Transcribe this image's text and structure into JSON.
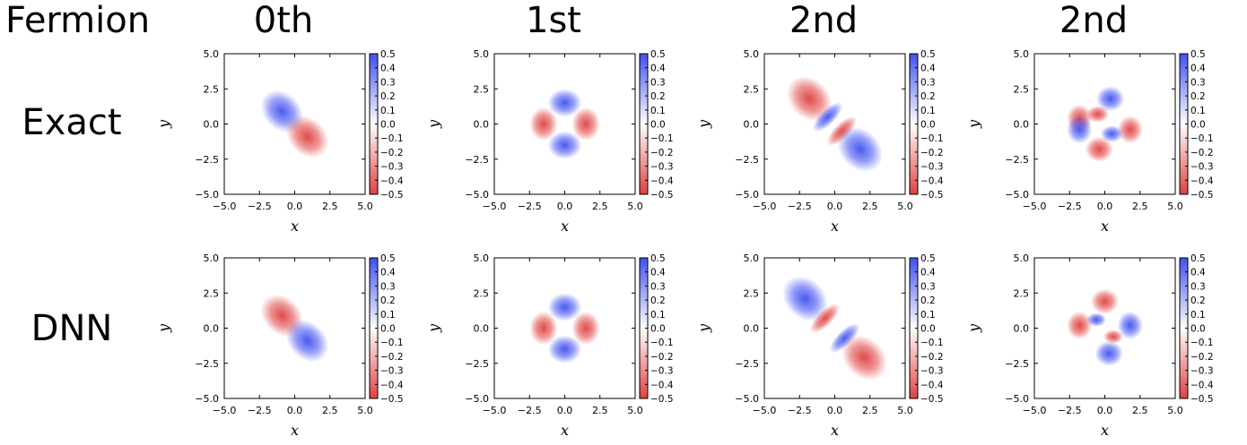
{
  "header": {
    "corner_label": "Fermion",
    "columns": [
      "0th",
      "1st",
      "2nd",
      "2nd"
    ],
    "rows": [
      "Exact",
      "DNN"
    ]
  },
  "colors": {
    "negative": "#e04040",
    "positive": "#4050f0",
    "zero": "#ffffff"
  },
  "chart_data": [
    {
      "type": "heatmap",
      "row": "Exact",
      "column": "0th",
      "xlabel": "x",
      "ylabel": "y",
      "xlim": [
        -5.0,
        5.0
      ],
      "ylim": [
        -5.0,
        5.0
      ],
      "xticks": [
        "−5.0",
        "−2.5",
        "0.0",
        "2.5",
        "5.0"
      ],
      "yticks": [
        "−5.0",
        "−2.5",
        "0.0",
        "2.5",
        "5.0"
      ],
      "colorbar": {
        "range": [
          -0.5,
          0.5
        ],
        "ticks": [
          "−0.5",
          "−0.4",
          "−0.3",
          "−0.2",
          "−0.1",
          "0.0",
          "0.1",
          "0.2",
          "0.3",
          "0.4",
          "0.5"
        ]
      }
    },
    {
      "type": "heatmap",
      "row": "Exact",
      "column": "1st",
      "xlabel": "x",
      "ylabel": "y",
      "xlim": [
        -5.0,
        5.0
      ],
      "ylim": [
        -5.0,
        5.0
      ],
      "xticks": [
        "−5.0",
        "−2.5",
        "0.0",
        "2.5",
        "5.0"
      ],
      "yticks": [
        "−5.0",
        "−2.5",
        "0.0",
        "2.5",
        "5.0"
      ],
      "colorbar": {
        "range": [
          -0.5,
          0.5
        ],
        "ticks": [
          "−0.5",
          "−0.4",
          "−0.3",
          "−0.2",
          "−0.1",
          "0.0",
          "0.1",
          "0.2",
          "0.3",
          "0.4",
          "0.5"
        ]
      }
    },
    {
      "type": "heatmap",
      "row": "Exact",
      "column": "2nd",
      "xlabel": "x",
      "ylabel": "y",
      "xlim": [
        -5.0,
        5.0
      ],
      "ylim": [
        -5.0,
        5.0
      ],
      "xticks": [
        "−5.0",
        "−2.5",
        "0.0",
        "2.5",
        "5.0"
      ],
      "yticks": [
        "−5.0",
        "−2.5",
        "0.0",
        "2.5",
        "5.0"
      ],
      "colorbar": {
        "range": [
          -0.5,
          0.5
        ],
        "ticks": [
          "−0.5",
          "−0.4",
          "−0.3",
          "−0.2",
          "−0.1",
          "0.0",
          "0.1",
          "0.2",
          "0.3",
          "0.4",
          "0.5"
        ]
      }
    },
    {
      "type": "heatmap",
      "row": "Exact",
      "column": "2nd",
      "xlabel": "x",
      "ylabel": "y",
      "xlim": [
        -5.0,
        5.0
      ],
      "ylim": [
        -5.0,
        5.0
      ],
      "xticks": [
        "−5.0",
        "−2.5",
        "0.0",
        "2.5",
        "5.0"
      ],
      "yticks": [
        "−5.0",
        "−2.5",
        "0.0",
        "2.5",
        "5.0"
      ],
      "colorbar": {
        "range": [
          -0.5,
          0.5
        ],
        "ticks": [
          "−0.5",
          "−0.4",
          "−0.3",
          "−0.2",
          "−0.1",
          "0.0",
          "0.1",
          "0.2",
          "0.3",
          "0.4",
          "0.5"
        ]
      }
    },
    {
      "type": "heatmap",
      "row": "DNN",
      "column": "0th",
      "xlabel": "x",
      "ylabel": "y",
      "xlim": [
        -5.0,
        5.0
      ],
      "ylim": [
        -5.0,
        5.0
      ],
      "xticks": [
        "−5.0",
        "−2.5",
        "0.0",
        "2.5",
        "5.0"
      ],
      "yticks": [
        "−5.0",
        "−2.5",
        "0.0",
        "2.5",
        "5.0"
      ],
      "colorbar": {
        "range": [
          -0.5,
          0.5
        ],
        "ticks": [
          "−0.5",
          "−0.4",
          "−0.3",
          "−0.2",
          "−0.1",
          "0.0",
          "0.1",
          "0.2",
          "0.3",
          "0.4",
          "0.5"
        ]
      }
    },
    {
      "type": "heatmap",
      "row": "DNN",
      "column": "1st",
      "xlabel": "x",
      "ylabel": "y",
      "xlim": [
        -5.0,
        5.0
      ],
      "ylim": [
        -5.0,
        5.0
      ],
      "xticks": [
        "−5.0",
        "−2.5",
        "0.0",
        "2.5",
        "5.0"
      ],
      "yticks": [
        "−5.0",
        "−2.5",
        "0.0",
        "2.5",
        "5.0"
      ],
      "colorbar": {
        "range": [
          -0.5,
          0.5
        ],
        "ticks": [
          "−0.5",
          "−0.4",
          "−0.3",
          "−0.2",
          "−0.1",
          "0.0",
          "0.1",
          "0.2",
          "0.3",
          "0.4",
          "0.5"
        ]
      }
    },
    {
      "type": "heatmap",
      "row": "DNN",
      "column": "2nd",
      "xlabel": "x",
      "ylabel": "y",
      "xlim": [
        -5.0,
        5.0
      ],
      "ylim": [
        -5.0,
        5.0
      ],
      "xticks": [
        "−5.0",
        "−2.5",
        "0.0",
        "2.5",
        "5.0"
      ],
      "yticks": [
        "−5.0",
        "−2.5",
        "0.0",
        "2.5",
        "5.0"
      ],
      "colorbar": {
        "range": [
          -0.5,
          0.5
        ],
        "ticks": [
          "−0.5",
          "−0.4",
          "−0.3",
          "−0.2",
          "−0.1",
          "0.0",
          "0.1",
          "0.2",
          "0.3",
          "0.4",
          "0.5"
        ]
      }
    },
    {
      "type": "heatmap",
      "row": "DNN",
      "column": "2nd",
      "xlabel": "x",
      "ylabel": "y",
      "xlim": [
        -5.0,
        5.0
      ],
      "ylim": [
        -5.0,
        5.0
      ],
      "xticks": [
        "−5.0",
        "−2.5",
        "0.0",
        "2.5",
        "5.0"
      ],
      "yticks": [
        "−5.0",
        "−2.5",
        "0.0",
        "2.5",
        "5.0"
      ],
      "colorbar": {
        "range": [
          -0.5,
          0.5
        ],
        "ticks": [
          "−0.5",
          "−0.4",
          "−0.3",
          "−0.2",
          "−0.1",
          "0.0",
          "0.1",
          "0.2",
          "0.3",
          "0.4",
          "0.5"
        ]
      }
    }
  ]
}
